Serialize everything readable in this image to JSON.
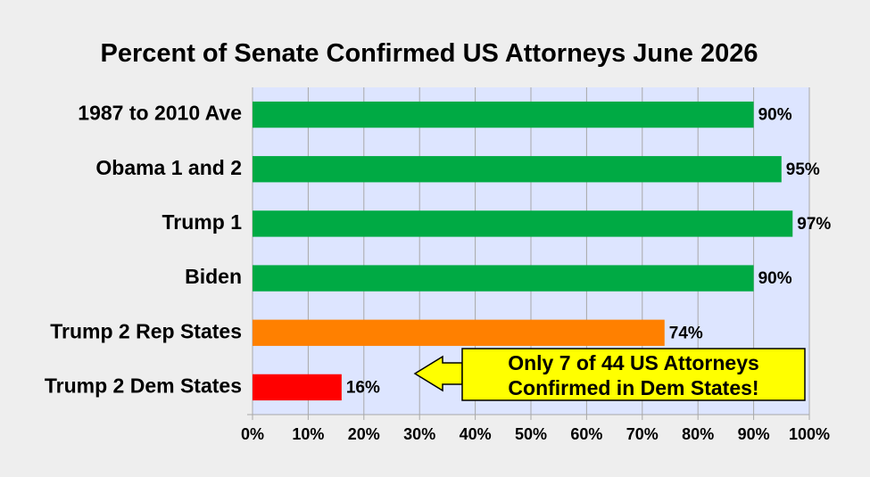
{
  "chart_data": {
    "type": "bar",
    "orientation": "horizontal",
    "title": "Percent of Senate Confirmed US Attorneys June 2026",
    "categories": [
      "1987 to 2010 Ave",
      "Obama 1 and 2",
      "Trump 1",
      "Biden",
      "Trump 2 Rep States",
      "Trump 2 Dem States"
    ],
    "values": [
      90,
      95,
      97,
      90,
      74,
      16
    ],
    "value_labels": [
      "90%",
      "95%",
      "97%",
      "90%",
      "74%",
      "16%"
    ],
    "bar_colors": [
      "#00aa44",
      "#00aa44",
      "#00aa44",
      "#00aa44",
      "#ff8000",
      "#ff0000"
    ],
    "xlim": [
      0,
      100
    ],
    "x_ticks": [
      0,
      10,
      20,
      30,
      40,
      50,
      60,
      70,
      80,
      90,
      100
    ],
    "x_tick_labels": [
      "0%",
      "10%",
      "20%",
      "30%",
      "40%",
      "50%",
      "60%",
      "70%",
      "80%",
      "90%",
      "100%"
    ],
    "xlabel": "",
    "ylabel": "",
    "grid": "vertical",
    "plot_background": "#dde5ff",
    "annotation": {
      "lines": [
        "Only 7 of 44 US Attorneys",
        "Confirmed in Dem States!"
      ],
      "fill": "#ffff00",
      "points_to": "Trump 2 Dem States"
    }
  }
}
